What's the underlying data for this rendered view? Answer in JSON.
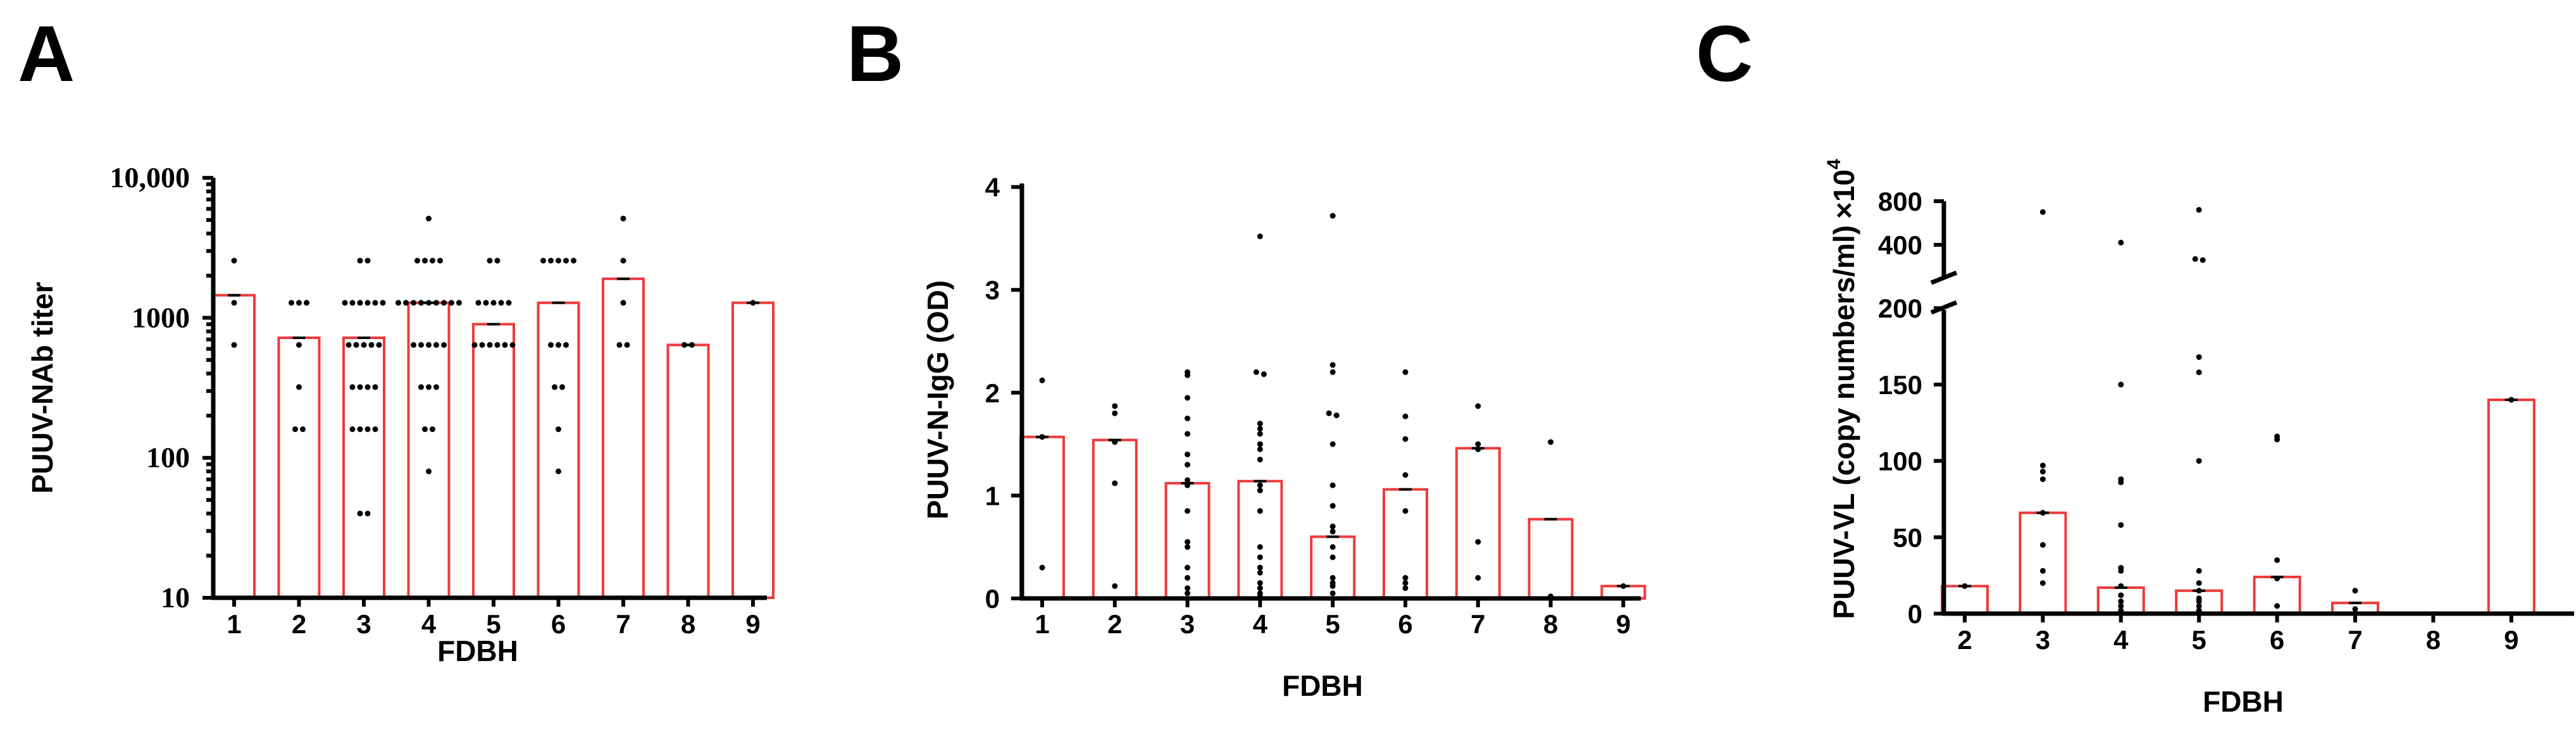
{
  "chart_data": [
    {
      "panel": "A",
      "type": "bar",
      "xlabel": "FDBH",
      "ylabel": "PUUV-NAb titer",
      "yscale": "log",
      "ylim": [
        10,
        10000
      ],
      "yticks": [
        10,
        100,
        1000,
        10000
      ],
      "ytick_labels": [
        "10",
        "100",
        "1000",
        "10,000"
      ],
      "categories": [
        "1",
        "2",
        "3",
        "4",
        "5",
        "6",
        "7",
        "8",
        "9"
      ],
      "values": [
        1450,
        720,
        720,
        1280,
        900,
        1280,
        1900,
        640,
        1280
      ],
      "points": [
        [
          2560,
          1280,
          640
        ],
        [
          1280,
          1280,
          1280,
          640,
          320,
          160,
          160
        ],
        [
          2560,
          2560,
          1280,
          1280,
          1280,
          1280,
          1280,
          1280,
          640,
          640,
          640,
          640,
          640,
          320,
          320,
          320,
          320,
          160,
          160,
          160,
          160,
          40,
          40
        ],
        [
          5120,
          2560,
          2560,
          2560,
          2560,
          1280,
          1280,
          1280,
          1280,
          1280,
          1280,
          1280,
          1280,
          1280,
          640,
          640,
          640,
          640,
          640,
          320,
          320,
          320,
          160,
          160,
          80
        ],
        [
          2560,
          2560,
          1280,
          1280,
          1280,
          1280,
          1280,
          640,
          640,
          640,
          640,
          640,
          640
        ],
        [
          2560,
          2560,
          2560,
          2560,
          2560,
          640,
          640,
          640,
          320,
          320,
          160,
          80
        ],
        [
          5120,
          2560,
          1280,
          640,
          640
        ],
        [
          640,
          640
        ],
        [
          1280
        ]
      ],
      "colors": {
        "bar_edge": "#ee3a3a",
        "points": "#000000"
      }
    },
    {
      "panel": "B",
      "type": "bar",
      "xlabel": "FDBH",
      "ylabel": "PUUV-N-IgG (OD)",
      "ylim": [
        0,
        4
      ],
      "yticks": [
        0,
        1,
        2,
        3,
        4
      ],
      "categories": [
        "1",
        "2",
        "3",
        "4",
        "5",
        "6",
        "7",
        "8",
        "9"
      ],
      "values": [
        1.57,
        1.54,
        1.12,
        1.14,
        0.6,
        1.06,
        1.46,
        0.77,
        0.12
      ],
      "points": [
        [
          2.12,
          1.57,
          0.3
        ],
        [
          1.87,
          1.8,
          1.52,
          1.12,
          0.12
        ],
        [
          2.2,
          2.17,
          1.95,
          1.75,
          1.6,
          1.4,
          1.3,
          1.15,
          1.1,
          0.85,
          0.55,
          0.5,
          0.3,
          0.2,
          0.1,
          0.05
        ],
        [
          3.52,
          2.2,
          2.18,
          1.7,
          1.65,
          1.6,
          1.5,
          1.45,
          1.35,
          1.1,
          1.05,
          0.85,
          0.5,
          0.4,
          0.3,
          0.25,
          0.15,
          0.1,
          0.05,
          0.02
        ],
        [
          3.72,
          2.27,
          2.2,
          1.8,
          1.78,
          1.5,
          1.1,
          0.9,
          0.7,
          0.65,
          0.5,
          0.4,
          0.2,
          0.15,
          0.12,
          0.05
        ],
        [
          2.2,
          1.77,
          1.55,
          1.2,
          0.85,
          0.2,
          0.15,
          0.1
        ],
        [
          1.87,
          1.5,
          1.45,
          0.55,
          0.2
        ],
        [
          1.52,
          0.02
        ],
        [
          0.12
        ]
      ],
      "colors": {
        "bar_edge": "#ee3a3a",
        "points": "#000000"
      }
    },
    {
      "panel": "C",
      "type": "bar",
      "xlabel": "FDBH",
      "ylabel": "PUUV-VL (copy numbers/ml)",
      "ylabel_multiplier": "×10",
      "ylabel_exponent": "4",
      "ylim": [
        0,
        800
      ],
      "y_axis_break": [
        220,
        300
      ],
      "yticks": [
        0,
        50,
        100,
        150,
        200,
        400,
        800
      ],
      "categories": [
        "2",
        "3",
        "4",
        "5",
        "6",
        "7",
        "8",
        "9"
      ],
      "values": [
        18,
        66,
        17,
        15,
        24,
        7,
        0,
        140
      ],
      "points": [
        [
          18
        ],
        [
          700,
          97,
          93,
          88,
          66,
          45,
          28,
          20
        ],
        [
          420,
          150,
          88,
          86,
          58,
          30,
          28,
          18,
          12,
          8,
          5,
          2
        ],
        [
          720,
          270,
          260,
          168,
          158,
          100,
          28,
          20,
          15,
          10,
          8,
          5,
          2
        ],
        [
          116,
          114,
          35,
          23,
          5
        ],
        [
          15,
          3
        ],
        [],
        [
          140
        ]
      ],
      "colors": {
        "bar_edge": "#ee3a3a",
        "points": "#000000"
      }
    }
  ],
  "panels": [
    {
      "letter": "A"
    },
    {
      "letter": "B"
    },
    {
      "letter": "C"
    }
  ]
}
